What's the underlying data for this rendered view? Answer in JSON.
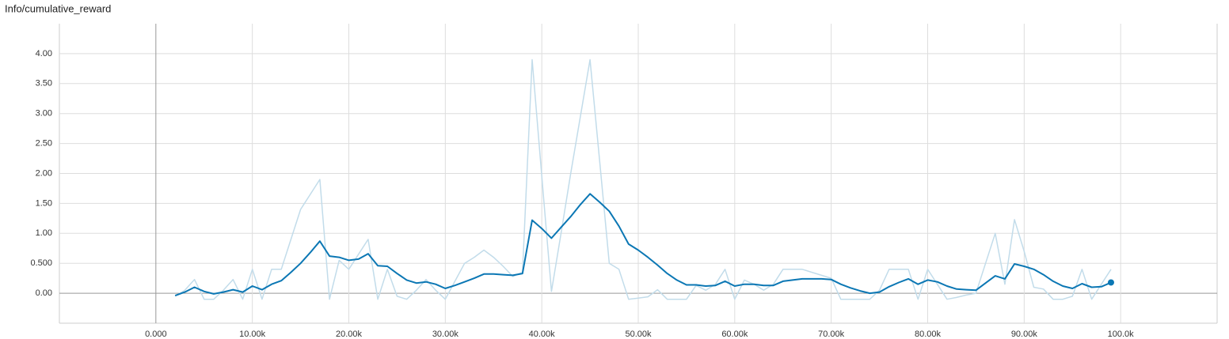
{
  "chart_data": {
    "type": "line",
    "title": "Info/cumulative_reward",
    "x": [
      2000,
      3000,
      4000,
      5000,
      6000,
      7000,
      8000,
      9000,
      10000,
      11000,
      12000,
      13000,
      14000,
      15000,
      16000,
      17000,
      18000,
      19000,
      20000,
      21000,
      22000,
      23000,
      24000,
      25000,
      26000,
      27000,
      28000,
      29000,
      30000,
      31000,
      32000,
      33000,
      34000,
      35000,
      36000,
      37000,
      38000,
      39000,
      40000,
      41000,
      42000,
      43000,
      44000,
      45000,
      46000,
      47000,
      48000,
      49000,
      50000,
      51000,
      52000,
      53000,
      54000,
      55000,
      56000,
      57000,
      58000,
      59000,
      60000,
      61000,
      62000,
      63000,
      64000,
      65000,
      66000,
      67000,
      68000,
      69000,
      70000,
      71000,
      72000,
      73000,
      74000,
      75000,
      76000,
      77000,
      78000,
      79000,
      80000,
      81000,
      82000,
      83000,
      84000,
      85000,
      86000,
      87000,
      88000,
      89000,
      90000,
      91000,
      92000,
      93000,
      94000,
      95000,
      96000,
      97000,
      98000,
      99000
    ],
    "series": [
      {
        "color": "#c2dcea",
        "values": [
          -0.05,
          0.05,
          0.23,
          -0.1,
          -0.1,
          0.05,
          0.23,
          -0.1,
          0.4,
          -0.1,
          0.4,
          0.4,
          0.9,
          1.4,
          1.65,
          1.9,
          -0.1,
          0.55,
          0.4,
          0.65,
          0.9,
          -0.1,
          0.4,
          -0.05,
          -0.1,
          0.05,
          0.23,
          0.05,
          -0.1,
          0.2,
          0.5,
          0.6,
          0.72,
          0.6,
          0.45,
          0.28,
          0.35,
          3.9,
          1.95,
          0.03,
          1.0,
          2.0,
          2.95,
          3.9,
          2.2,
          0.5,
          0.4,
          -0.1,
          -0.08,
          -0.06,
          0.06,
          -0.1,
          -0.1,
          -0.1,
          0.13,
          0.05,
          0.15,
          0.4,
          -0.1,
          0.22,
          0.15,
          0.05,
          0.15,
          0.4,
          0.4,
          0.4,
          0.35,
          0.3,
          0.25,
          -0.1,
          -0.1,
          -0.1,
          -0.1,
          0.05,
          0.4,
          0.4,
          0.4,
          -0.1,
          0.4,
          0.15,
          -0.1,
          -0.07,
          -0.03,
          0.0,
          0.5,
          1.0,
          0.15,
          1.23,
          0.7,
          0.1,
          0.07,
          -0.1,
          -0.1,
          -0.05,
          0.4,
          -0.1,
          0.15,
          0.4
        ]
      },
      {
        "color": "#0b77b4",
        "values": [
          -0.04,
          0.02,
          0.1,
          0.03,
          -0.01,
          0.02,
          0.06,
          0.02,
          0.12,
          0.06,
          0.15,
          0.21,
          0.35,
          0.5,
          0.68,
          0.87,
          0.62,
          0.6,
          0.55,
          0.57,
          0.66,
          0.46,
          0.45,
          0.33,
          0.22,
          0.17,
          0.19,
          0.15,
          0.08,
          0.13,
          0.19,
          0.25,
          0.32,
          0.32,
          0.31,
          0.3,
          0.33,
          1.22,
          1.08,
          0.92,
          1.1,
          1.28,
          1.48,
          1.66,
          1.52,
          1.37,
          1.12,
          0.82,
          0.72,
          0.6,
          0.47,
          0.33,
          0.22,
          0.14,
          0.14,
          0.12,
          0.13,
          0.2,
          0.12,
          0.15,
          0.15,
          0.13,
          0.13,
          0.2,
          0.22,
          0.24,
          0.24,
          0.24,
          0.23,
          0.15,
          0.09,
          0.04,
          0.0,
          0.02,
          0.11,
          0.18,
          0.24,
          0.15,
          0.22,
          0.19,
          0.12,
          0.07,
          0.06,
          0.05,
          0.17,
          0.29,
          0.24,
          0.49,
          0.45,
          0.4,
          0.31,
          0.2,
          0.12,
          0.08,
          0.16,
          0.1,
          0.11,
          0.18
        ]
      }
    ],
    "xlim": [
      -10000,
      110000
    ],
    "xticks": [
      {
        "value": 0,
        "label": "0.000"
      },
      {
        "value": 10000,
        "label": "10.00k"
      },
      {
        "value": 20000,
        "label": "20.00k"
      },
      {
        "value": 30000,
        "label": "30.00k"
      },
      {
        "value": 40000,
        "label": "40.00k"
      },
      {
        "value": 50000,
        "label": "50.00k"
      },
      {
        "value": 60000,
        "label": "60.00k"
      },
      {
        "value": 70000,
        "label": "70.00k"
      },
      {
        "value": 80000,
        "label": "80.00k"
      },
      {
        "value": 90000,
        "label": "90.00k"
      },
      {
        "value": 100000,
        "label": "100.0k"
      }
    ],
    "ylim": [
      -0.5,
      4.5
    ],
    "yticks": [
      {
        "value": 0,
        "label": "0.00"
      },
      {
        "value": 0.5,
        "label": "0.500"
      },
      {
        "value": 1,
        "label": "1.00"
      },
      {
        "value": 1.5,
        "label": "1.50"
      },
      {
        "value": 2,
        "label": "2.00"
      },
      {
        "value": 2.5,
        "label": "2.50"
      },
      {
        "value": 3,
        "label": "3.00"
      },
      {
        "value": 3.5,
        "label": "3.50"
      },
      {
        "value": 4,
        "label": "4.00"
      }
    ],
    "grid": true
  }
}
